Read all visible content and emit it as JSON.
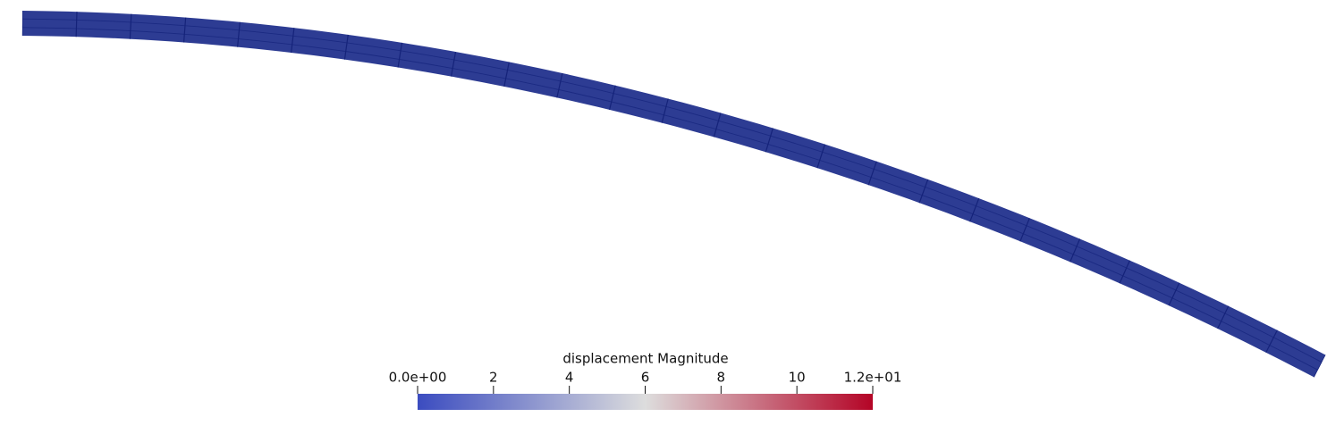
{
  "colorbar": {
    "title": "displacement Magnitude",
    "range": [
      0,
      12
    ],
    "ticks": [
      {
        "value": 0,
        "label": "0.0e+00"
      },
      2,
      4,
      6,
      8,
      10,
      {
        "value": 12,
        "label": "1.2e+01"
      }
    ],
    "colormap": [
      "#3b4cc0",
      "#dddddd",
      "#b40426"
    ]
  }
}
